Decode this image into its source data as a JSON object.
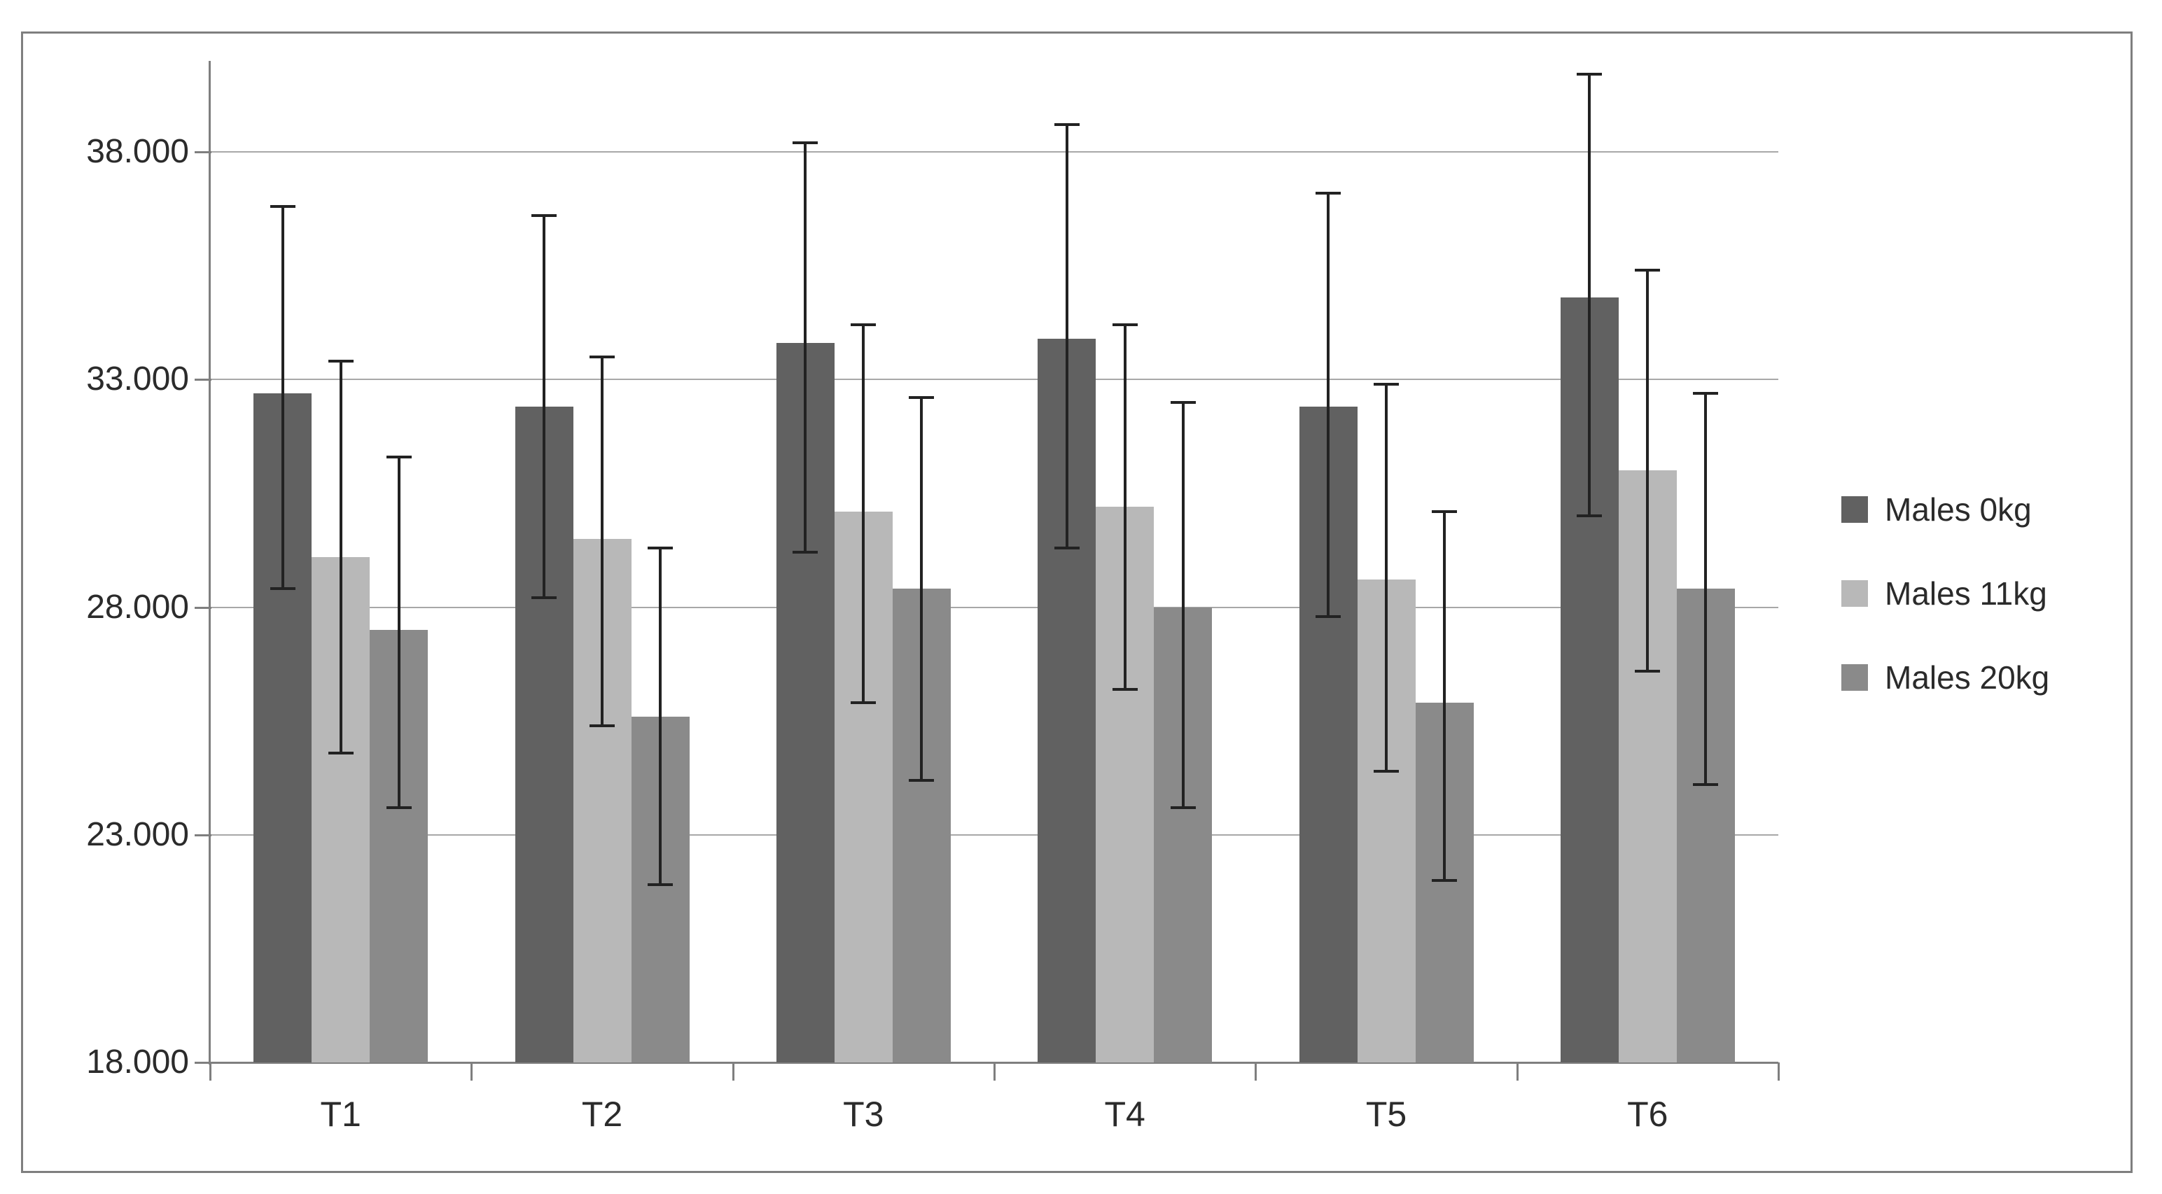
{
  "chart_data": {
    "type": "bar",
    "title": "",
    "categories": [
      "T1",
      "T2",
      "T3",
      "T4",
      "T5",
      "T6"
    ],
    "series": [
      {
        "name": "Males 0kg",
        "color": "#616161",
        "values": [
          32.7,
          32.4,
          33.8,
          33.9,
          32.4,
          34.8
        ],
        "err_low": [
          28.4,
          28.2,
          29.2,
          29.3,
          27.8,
          30.0
        ],
        "err_high": [
          36.8,
          36.6,
          38.2,
          38.6,
          37.1,
          39.7
        ]
      },
      {
        "name": "Males 11kg",
        "color": "#b8b8b8",
        "values": [
          29.1,
          29.5,
          30.1,
          30.2,
          28.6,
          31.0
        ],
        "err_low": [
          24.8,
          25.4,
          25.9,
          26.2,
          24.4,
          26.6
        ],
        "err_high": [
          33.4,
          33.5,
          34.2,
          34.2,
          32.9,
          35.4
        ]
      },
      {
        "name": "Males 20kg",
        "color": "#8a8a8a",
        "values": [
          27.5,
          25.6,
          28.4,
          28.0,
          25.9,
          28.4
        ],
        "err_low": [
          23.6,
          21.9,
          24.2,
          23.6,
          22.0,
          24.1
        ],
        "err_high": [
          31.3,
          29.3,
          32.6,
          32.5,
          30.1,
          32.7
        ]
      }
    ],
    "ylim": [
      18,
      40
    ],
    "y_ticks": [
      18,
      23,
      28,
      33,
      38
    ],
    "y_tick_labels": [
      "18.000",
      "23.000",
      "28.000",
      "33.000",
      "38.000"
    ],
    "xlabel": "",
    "ylabel": "",
    "grid": "horizontal",
    "legend_position": "right",
    "error_bars": true
  },
  "colors": {
    "background": "#ffffff",
    "frame_border": "#7f7f7f",
    "gridline": "#a8a8a8",
    "axis": "#7f7f7f",
    "error_bar": "#222222",
    "text": "#2b2b2b"
  }
}
